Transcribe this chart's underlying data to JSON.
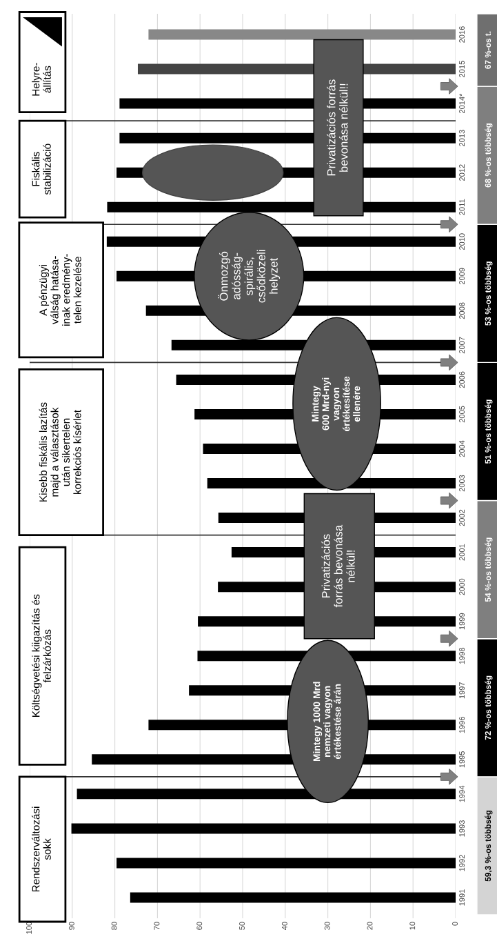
{
  "chart_data": {
    "type": "bar",
    "orientation": "horizontal",
    "x": [
      1991,
      1992,
      1993,
      1994,
      1995,
      1996,
      1997,
      1998,
      1999,
      2000,
      2001,
      2002,
      2003,
      2004,
      2005,
      2006,
      2007,
      2008,
      2009,
      2010,
      2011,
      2012,
      2013,
      2014,
      2015,
      2016
    ],
    "values": [
      76.4,
      79.6,
      90.2,
      88.9,
      85.4,
      72.1,
      62.6,
      60.6,
      60.5,
      55.8,
      52.6,
      55.7,
      58.3,
      59.3,
      61.3,
      65.6,
      66.7,
      72.7,
      79.6,
      81.9,
      81.8,
      79.6,
      78.9,
      78.9,
      74.6,
      72.1
    ],
    "colors": [
      "#000000",
      "#000000",
      "#000000",
      "#000000",
      "#000000",
      "#000000",
      "#000000",
      "#000000",
      "#000000",
      "#000000",
      "#000000",
      "#000000",
      "#000000",
      "#000000",
      "#000000",
      "#000000",
      "#000000",
      "#000000",
      "#000000",
      "#000000",
      "#000000",
      "#000000",
      "#000000",
      "#000000",
      "#444444",
      "#888888"
    ],
    "xlim": [
      100,
      0
    ],
    "xticks": [
      0,
      10,
      20,
      30,
      40,
      50,
      60,
      70,
      80,
      90,
      100
    ],
    "ylim": [
      1990.4,
      2016.6
    ],
    "yticks": [
      1991,
      1992,
      1993,
      1994,
      1995,
      1996,
      1997,
      1998,
      1999,
      2000,
      2001,
      2002,
      2003,
      2004,
      2005,
      2006,
      2007,
      2008,
      2009,
      2010,
      2011,
      2012,
      2013,
      {
        "value": 2014,
        "label": "2014*"
      },
      2015,
      2016
    ],
    "grid": "x",
    "ref_lines": [
      {
        "axis": "y",
        "value": 1994.5,
        "label": null,
        "color": "#333333"
      },
      {
        "axis": "y",
        "value": 2001.5,
        "label": null,
        "color": "#333333"
      },
      {
        "axis": "y",
        "value": 2006.5,
        "label": null,
        "color": "#333333"
      },
      {
        "axis": "y",
        "value": 2010.5,
        "label": null,
        "color": "#333333"
      },
      {
        "axis": "y",
        "value": 2013.5,
        "label": null,
        "color": "#333333"
      }
    ],
    "annotations": [
      "Rendszerváltozási\nsokk",
      "Költségvetési kiigazítás és\nfelzárkózás",
      "Kisebb fiskális lazítás\nmajd a választások\nután sikertelen\nkorrekciós kísérlet",
      "A pénzügyi\nválság hatása-\ninak eredmény-\ntelen kezelése",
      "Fiskális\nstabilizáció",
      "Helyre-\nállítás",
      "Mintegy 1000 Mrd\nnemzeti vagyon\nértékestése árán",
      "Privatizációs\nforrás bevonása\nnélkül!",
      "Mintegy\n600 Mrd-nyi\nvagyon\nértékesítése\nellenére",
      "Önmozgó\nadósság-\nspirális,\ncsődközeli\nhelyzet",
      "Privatizációs forrás\nbevonása nélkül!!",
      "59,3 %-os többség",
      "72 %-os többség",
      "54 %-os többség",
      "51 %-os többség",
      "53 %-os többség",
      "68 %-os többség",
      "67 %-os t."
    ]
  }
}
